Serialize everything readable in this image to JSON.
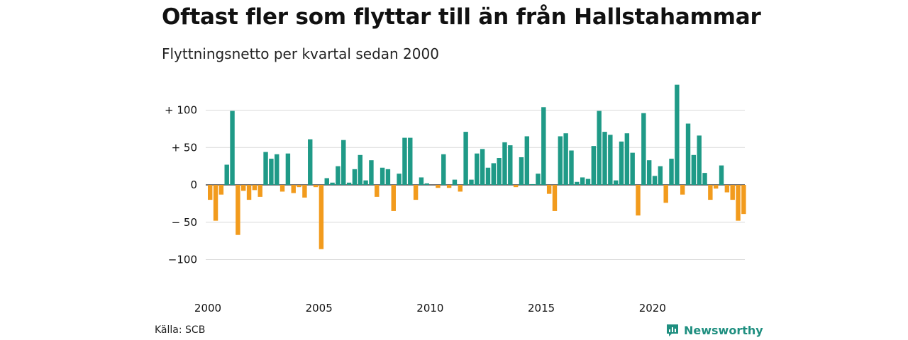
{
  "header": {
    "title": "Oftast fler som flyttar till än från Hallstahammar",
    "subtitle": "Flyttningsnetto per kvartal sedan 2000"
  },
  "footer": {
    "source": "Källa: SCB",
    "brand": "Newsworthy"
  },
  "colors": {
    "positive": "#1f9a87",
    "negative": "#f29b1d",
    "grid": "#d9d9d9",
    "brand": "#1f8f80"
  },
  "chart_data": {
    "type": "bar",
    "x_start": "2000 Q1",
    "x_ticks": [
      "2000",
      "2005",
      "2010",
      "2015",
      "2020"
    ],
    "y_ticks": [
      100,
      50,
      0,
      -50,
      -100
    ],
    "y_tick_labels": [
      "+ 100",
      "+  50",
      "0",
      "− 50",
      "−100"
    ],
    "ylim": [
      -135,
      140
    ],
    "grid": true,
    "values": [
      -20,
      -48,
      -13,
      27,
      99,
      -67,
      -8,
      -20,
      -7,
      -16,
      44,
      35,
      41,
      -9,
      42,
      -11,
      -3,
      -17,
      61,
      -3,
      -86,
      9,
      3,
      25,
      60,
      3,
      21,
      40,
      6,
      33,
      -16,
      23,
      21,
      -35,
      15,
      63,
      63,
      -20,
      10,
      2,
      0,
      -4,
      41,
      -4,
      7,
      -9,
      71,
      7,
      42,
      48,
      23,
      29,
      36,
      57,
      53,
      -3,
      37,
      65,
      1,
      15,
      104,
      -12,
      -35,
      65,
      69,
      46,
      4,
      10,
      8,
      52,
      99,
      71,
      67,
      6,
      58,
      69,
      43,
      -41,
      96,
      33,
      12,
      25,
      -24,
      35,
      134,
      -13,
      82,
      40,
      66,
      16,
      -20,
      -5,
      26,
      -10,
      -20,
      -48,
      -39
    ]
  }
}
